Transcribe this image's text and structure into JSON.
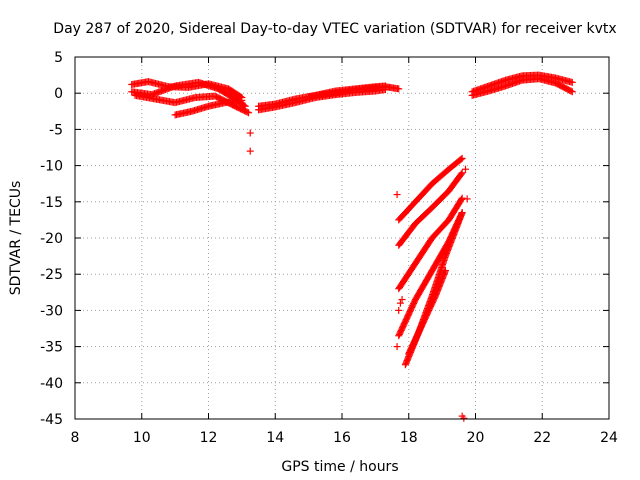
{
  "chart_data": {
    "type": "scatter",
    "title": "Day 287 of 2020, Sidereal Day-to-day VTEC variation (SDTVAR) for receiver kvtx",
    "xlabel": "GPS time / hours",
    "ylabel": "SDTVAR / TECUs",
    "xlim": [
      8,
      24
    ],
    "ylim": [
      -45,
      5
    ],
    "xticks": [
      8,
      10,
      12,
      14,
      16,
      18,
      20,
      22,
      24
    ],
    "yticks": [
      5,
      0,
      -5,
      -10,
      -15,
      -20,
      -25,
      -30,
      -35,
      -40,
      -45
    ],
    "grid": true,
    "marker": "+",
    "color": "#ff0000",
    "segments": [
      {
        "x": [
          9.7,
          10.2,
          10.8,
          11.4,
          12.0,
          12.6,
          13.0
        ],
        "y": [
          1.2,
          1.6,
          0.9,
          0.8,
          1.3,
          0.6,
          -0.6
        ]
      },
      {
        "x": [
          9.7,
          10.3,
          11.0,
          11.7,
          12.3,
          12.8,
          13.1
        ],
        "y": [
          0.2,
          -0.2,
          1.0,
          1.5,
          0.6,
          -0.8,
          -1.8
        ]
      },
      {
        "x": [
          9.8,
          10.4,
          11.0,
          11.6,
          12.2,
          12.8,
          13.2
        ],
        "y": [
          -0.3,
          -0.8,
          -1.3,
          -0.6,
          -0.4,
          -1.8,
          -2.7
        ]
      },
      {
        "x": [
          11.0,
          11.5,
          12.0,
          12.5,
          13.0
        ],
        "y": [
          -3.0,
          -2.5,
          -1.8,
          -1.3,
          -1.0
        ]
      },
      {
        "x": [
          13.5,
          14.0,
          14.6,
          15.2,
          15.8,
          16.4,
          17.0,
          17.3
        ],
        "y": [
          -1.8,
          -1.5,
          -0.8,
          -0.3,
          0.3,
          0.6,
          0.9,
          1.0
        ]
      },
      {
        "x": [
          13.5,
          14.0,
          14.6,
          15.2,
          15.8,
          16.4,
          17.0,
          17.3
        ],
        "y": [
          -2.3,
          -1.9,
          -1.3,
          -0.6,
          -0.2,
          0.1,
          0.3,
          0.5
        ]
      },
      {
        "x": [
          15.0,
          15.4,
          15.9,
          16.4,
          16.9,
          17.3,
          17.7
        ],
        "y": [
          -0.5,
          -0.2,
          0.1,
          0.5,
          0.7,
          0.9,
          0.6
        ]
      },
      {
        "x": [
          19.9,
          20.4,
          20.9,
          21.4,
          21.9,
          22.4,
          22.9
        ],
        "y": [
          0.2,
          1.0,
          1.8,
          2.4,
          2.5,
          2.1,
          1.5
        ]
      },
      {
        "x": [
          19.9,
          20.4,
          20.9,
          21.4,
          21.9,
          22.4,
          22.9
        ],
        "y": [
          -0.3,
          0.3,
          1.0,
          1.8,
          2.0,
          1.4,
          0.2
        ]
      },
      {
        "x": [
          17.7,
          18.2,
          18.7,
          19.2,
          19.6
        ],
        "y": [
          -17.5,
          -15.0,
          -12.5,
          -10.5,
          -9.0
        ]
      },
      {
        "x": [
          17.7,
          18.2,
          18.7,
          19.2,
          19.6
        ],
        "y": [
          -21.0,
          -18.0,
          -15.8,
          -13.5,
          -11.0
        ]
      },
      {
        "x": [
          17.7,
          18.2,
          18.7,
          19.2,
          19.6
        ],
        "y": [
          -27.0,
          -23.5,
          -20.0,
          -17.5,
          -14.5
        ]
      },
      {
        "x": [
          17.7,
          18.2,
          18.7,
          19.2,
          19.6
        ],
        "y": [
          -33.5,
          -28.5,
          -24.5,
          -20.5,
          -16.5
        ]
      },
      {
        "x": [
          17.9,
          18.3,
          18.7,
          19.1,
          19.6
        ],
        "y": [
          -37.5,
          -33.0,
          -28.0,
          -22.5,
          -16.5
        ]
      },
      {
        "x": [
          18.0,
          18.4,
          18.8,
          19.1
        ],
        "y": [
          -36.0,
          -32.0,
          -28.0,
          -24.5
        ]
      }
    ],
    "isolated_points": [
      {
        "x": 13.25,
        "y": -5.5
      },
      {
        "x": 13.25,
        "y": -8.0
      },
      {
        "x": 17.65,
        "y": -14.0
      },
      {
        "x": 17.65,
        "y": -35.0
      },
      {
        "x": 17.7,
        "y": -30.0
      },
      {
        "x": 17.75,
        "y": -29.0
      },
      {
        "x": 17.8,
        "y": -28.5
      },
      {
        "x": 19.7,
        "y": -10.5
      },
      {
        "x": 19.75,
        "y": -14.6
      },
      {
        "x": 19.6,
        "y": -44.6
      },
      {
        "x": 19.65,
        "y": -44.9
      }
    ]
  }
}
